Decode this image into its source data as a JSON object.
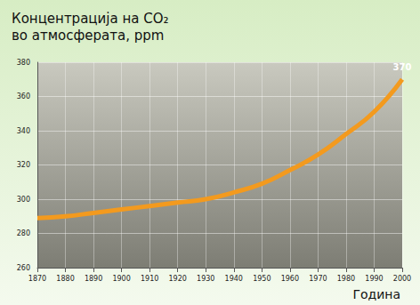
{
  "chart_data": {
    "type": "line",
    "title": "Концентрација на CO₂\nво атмосферата, ppm",
    "x_label": "Година",
    "x": [
      1870,
      1880,
      1890,
      1900,
      1910,
      1920,
      1930,
      1940,
      1950,
      1960,
      1970,
      1980,
      1990,
      2000
    ],
    "values": [
      289,
      290,
      292,
      294,
      296,
      298,
      300,
      304,
      309,
      317,
      326,
      338,
      351,
      370
    ],
    "color": "#f39a1e",
    "xlim": [
      1870,
      2000
    ],
    "xticks": [
      1870,
      1880,
      1890,
      1900,
      1910,
      1920,
      1930,
      1940,
      1950,
      1960,
      1970,
      1980,
      1990,
      2000
    ],
    "ylim": [
      260,
      380
    ],
    "yticks": [
      260,
      280,
      300,
      320,
      340,
      360,
      380
    ],
    "grid": true,
    "annotations": [
      {
        "text": "370",
        "x": 2000,
        "y": 370
      }
    ]
  }
}
